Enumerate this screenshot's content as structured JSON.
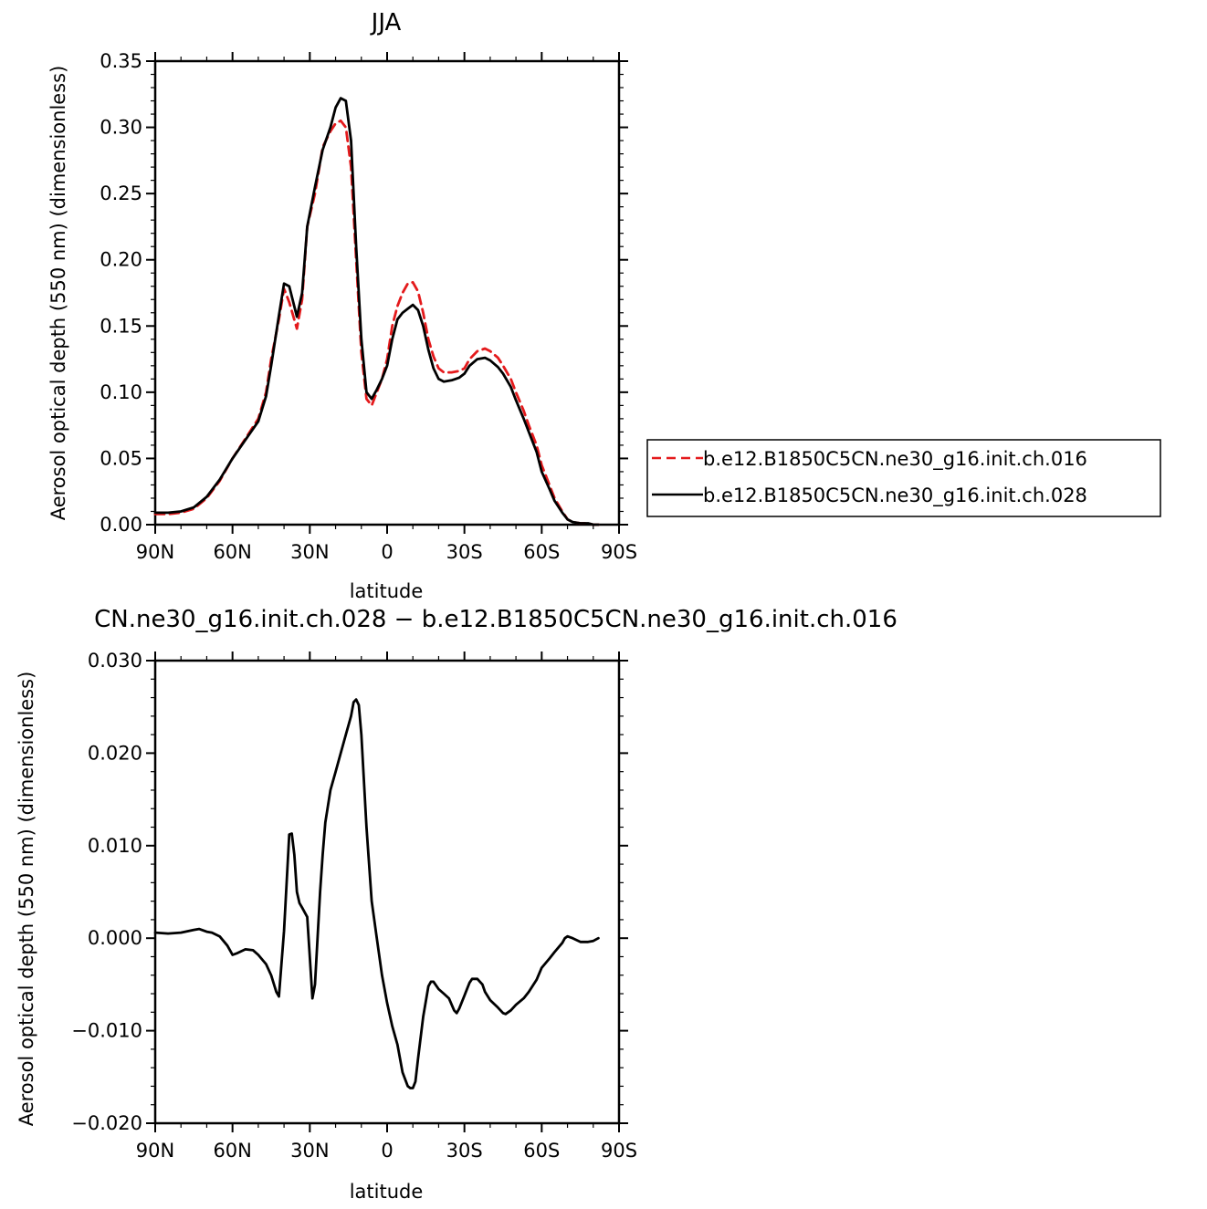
{
  "chart_data": [
    {
      "type": "line",
      "title": "JJA",
      "xlabel": "latitude",
      "ylabel": "Aerosol optical depth (550 nm) (dimensionless)",
      "xlim": [
        90,
        -90
      ],
      "ylim": [
        0,
        0.35
      ],
      "x_ticks": [
        90,
        60,
        30,
        0,
        -30,
        -60,
        -90
      ],
      "x_tick_labels": [
        "90N",
        "60N",
        "30N",
        "0",
        "30S",
        "60S",
        "90S"
      ],
      "y_ticks": [
        0,
        0.05,
        0.1,
        0.15,
        0.2,
        0.25,
        0.3,
        0.35
      ],
      "y_tick_labels": [
        "0.00",
        "0.05",
        "0.10",
        "0.15",
        "0.20",
        "0.25",
        "0.30",
        "0.35"
      ],
      "grid": false,
      "legend_position": "right",
      "series": [
        {
          "name": "b.e12.B1850C5CN.ne30_g16.init.ch.016",
          "color": "#e41a1c",
          "style": "dashed",
          "x": [
            90,
            85,
            80,
            75,
            70,
            65,
            60,
            55,
            50,
            47,
            45,
            42,
            40,
            38,
            35,
            33,
            31,
            28,
            25,
            22,
            20,
            18,
            16,
            14,
            12,
            10,
            8,
            6,
            4,
            2,
            0,
            -2,
            -4,
            -6,
            -8,
            -10,
            -12,
            -14,
            -16,
            -18,
            -20,
            -22,
            -25,
            -28,
            -30,
            -32,
            -35,
            -38,
            -40,
            -43,
            -45,
            -48,
            -50,
            -53,
            -55,
            -58,
            -60,
            -63,
            -65,
            -68,
            -70,
            -72,
            -75,
            -78,
            -80,
            -82
          ],
          "y": [
            0.008,
            0.008,
            0.009,
            0.012,
            0.02,
            0.033,
            0.05,
            0.065,
            0.08,
            0.1,
            0.125,
            0.155,
            0.178,
            0.168,
            0.148,
            0.17,
            0.225,
            0.25,
            0.285,
            0.297,
            0.303,
            0.305,
            0.3,
            0.27,
            0.2,
            0.13,
            0.095,
            0.09,
            0.1,
            0.11,
            0.125,
            0.15,
            0.165,
            0.175,
            0.182,
            0.183,
            0.176,
            0.16,
            0.14,
            0.127,
            0.118,
            0.115,
            0.115,
            0.116,
            0.118,
            0.125,
            0.131,
            0.133,
            0.131,
            0.126,
            0.12,
            0.11,
            0.1,
            0.086,
            0.075,
            0.06,
            0.045,
            0.03,
            0.02,
            0.01,
            0.004,
            0.002,
            0.001,
            0.001,
            0.0,
            0.0
          ]
        },
        {
          "name": "b.e12.B1850C5CN.ne30_g16.init.ch.028",
          "color": "#000000",
          "style": "solid",
          "x": [
            90,
            85,
            80,
            75,
            70,
            65,
            60,
            55,
            50,
            47,
            45,
            42,
            40,
            38,
            35,
            33,
            31,
            28,
            25,
            22,
            20,
            18,
            16,
            14,
            12,
            10,
            8,
            6,
            4,
            2,
            0,
            -2,
            -4,
            -6,
            -8,
            -10,
            -12,
            -14,
            -16,
            -18,
            -20,
            -22,
            -25,
            -28,
            -30,
            -32,
            -35,
            -38,
            -40,
            -43,
            -45,
            -48,
            -50,
            -53,
            -55,
            -58,
            -60,
            -63,
            -65,
            -68,
            -70,
            -72,
            -75,
            -78,
            -80,
            -82
          ],
          "y": [
            0.009,
            0.009,
            0.01,
            0.013,
            0.021,
            0.034,
            0.05,
            0.064,
            0.078,
            0.097,
            0.12,
            0.158,
            0.182,
            0.18,
            0.157,
            0.175,
            0.225,
            0.255,
            0.283,
            0.3,
            0.315,
            0.322,
            0.32,
            0.29,
            0.21,
            0.14,
            0.1,
            0.095,
            0.102,
            0.11,
            0.12,
            0.14,
            0.155,
            0.16,
            0.163,
            0.166,
            0.162,
            0.15,
            0.132,
            0.118,
            0.11,
            0.108,
            0.109,
            0.111,
            0.114,
            0.12,
            0.125,
            0.126,
            0.124,
            0.119,
            0.114,
            0.104,
            0.094,
            0.08,
            0.07,
            0.055,
            0.04,
            0.027,
            0.018,
            0.009,
            0.004,
            0.002,
            0.001,
            0.001,
            0.0,
            0.0
          ]
        }
      ]
    },
    {
      "type": "line",
      "title": "CN.ne30_g16.init.ch.028 − b.e12.B1850C5CN.ne30_g16.init.ch.016",
      "xlabel": "latitude",
      "ylabel": "Aerosol optical depth (550 nm) (dimensionless)",
      "xlim": [
        90,
        -90
      ],
      "ylim": [
        -0.02,
        0.03
      ],
      "x_ticks": [
        90,
        60,
        30,
        0,
        -30,
        -60,
        -90
      ],
      "x_tick_labels": [
        "90N",
        "60N",
        "30N",
        "0",
        "30S",
        "60S",
        "90S"
      ],
      "y_ticks": [
        -0.02,
        -0.01,
        0.0,
        0.01,
        0.02,
        0.03
      ],
      "y_tick_labels": [
        "−0.020",
        "−0.010",
        "0.000",
        "0.010",
        "0.020",
        "0.030"
      ],
      "grid": false,
      "series": [
        {
          "color": "#000000",
          "style": "solid",
          "x": [
            90,
            85,
            80,
            75,
            73,
            70,
            68,
            65,
            62,
            60,
            58,
            55,
            52,
            50,
            47,
            45,
            43,
            42,
            40,
            38,
            37,
            36,
            35,
            34,
            33,
            31,
            30,
            29,
            28,
            27,
            26,
            25,
            24,
            22,
            20,
            18,
            16,
            14,
            13,
            12,
            11,
            10,
            8,
            6,
            4,
            2,
            0,
            -2,
            -4,
            -6,
            -8,
            -9,
            -10,
            -11,
            -12,
            -14,
            -16,
            -17,
            -18,
            -20,
            -22,
            -24,
            -26,
            -27,
            -28,
            -30,
            -32,
            -33,
            -35,
            -37,
            -38,
            -40,
            -43,
            -45,
            -46,
            -48,
            -50,
            -53,
            -55,
            -58,
            -60,
            -63,
            -65,
            -68,
            -69,
            -70,
            -71,
            -72,
            -75,
            -78,
            -80,
            -82
          ],
          "y": [
            0.0006,
            0.0005,
            0.0006,
            0.0009,
            0.001,
            0.0007,
            0.0006,
            0.0002,
            -0.0008,
            -0.0018,
            -0.0016,
            -0.0012,
            -0.0013,
            -0.0018,
            -0.0028,
            -0.004,
            -0.0058,
            -0.0063,
            0.0008,
            0.0112,
            0.0113,
            0.009,
            0.005,
            0.0038,
            0.0033,
            0.0023,
            -0.002,
            -0.0065,
            -0.005,
            0.0,
            0.005,
            0.009,
            0.0125,
            0.016,
            0.018,
            0.02,
            0.022,
            0.024,
            0.0255,
            0.0258,
            0.0252,
            0.022,
            0.012,
            0.004,
            0.0,
            -0.004,
            -0.007,
            -0.0095,
            -0.0115,
            -0.0145,
            -0.016,
            -0.0162,
            -0.0162,
            -0.0155,
            -0.013,
            -0.0085,
            -0.0052,
            -0.0047,
            -0.0047,
            -0.0055,
            -0.006,
            -0.0065,
            -0.0078,
            -0.0081,
            -0.0076,
            -0.0062,
            -0.0048,
            -0.0044,
            -0.0044,
            -0.005,
            -0.0058,
            -0.0067,
            -0.0075,
            -0.0081,
            -0.0082,
            -0.0078,
            -0.0072,
            -0.0065,
            -0.0058,
            -0.0045,
            -0.0032,
            -0.0022,
            -0.0015,
            -0.0005,
            0.0,
            0.0002,
            0.0001,
            0.0,
            -0.0004,
            -0.0004,
            -0.0003,
            0.0
          ]
        }
      ]
    }
  ]
}
